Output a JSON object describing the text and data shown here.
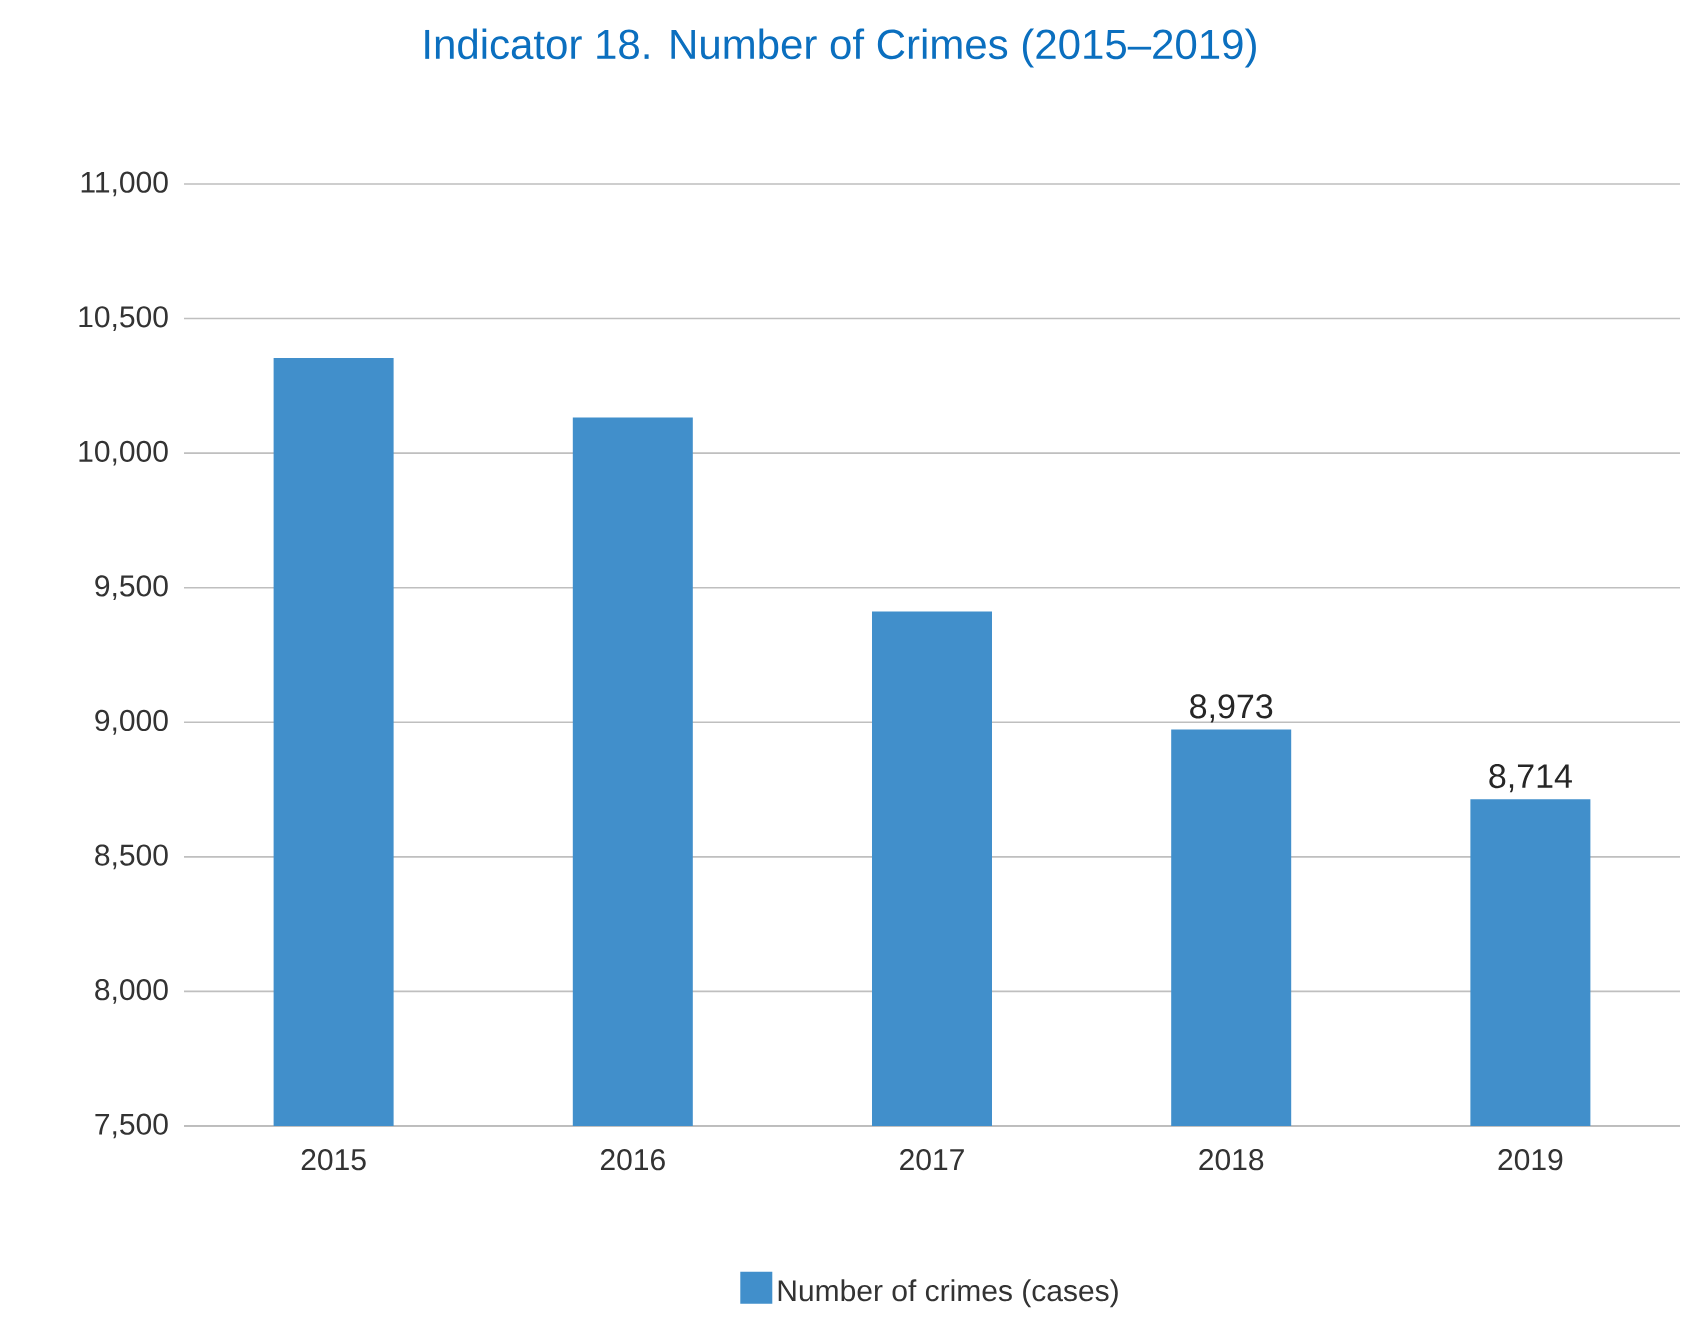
{
  "chart_data": {
    "type": "bar",
    "title": "Indicator 18. Number of Crimes (2015–2019)",
    "categories": [
      "2015",
      "2016",
      "2017",
      "2018",
      "2019"
    ],
    "series": [
      {
        "name": "Number of crimes (cases)",
        "color": "#418fcb",
        "values": [
          10353,
          10132,
          9412,
          8973,
          8714
        ],
        "value_labels": [
          null,
          null,
          null,
          "8,973",
          "8,714"
        ]
      }
    ],
    "ylim": [
      7500,
      11000
    ],
    "yticks": [
      {
        "value": 7500,
        "label": "7,500"
      },
      {
        "value": 8000,
        "label": "8,000"
      },
      {
        "value": 8500,
        "label": "8,500"
      },
      {
        "value": 9000,
        "label": "9,000"
      },
      {
        "value": 9500,
        "label": "9,500"
      },
      {
        "value": 10000,
        "label": "10,000"
      },
      {
        "value": 10500,
        "label": "10,500"
      },
      {
        "value": 11000,
        "label": "11,000"
      }
    ],
    "grid": "y",
    "legend": "bottom"
  }
}
